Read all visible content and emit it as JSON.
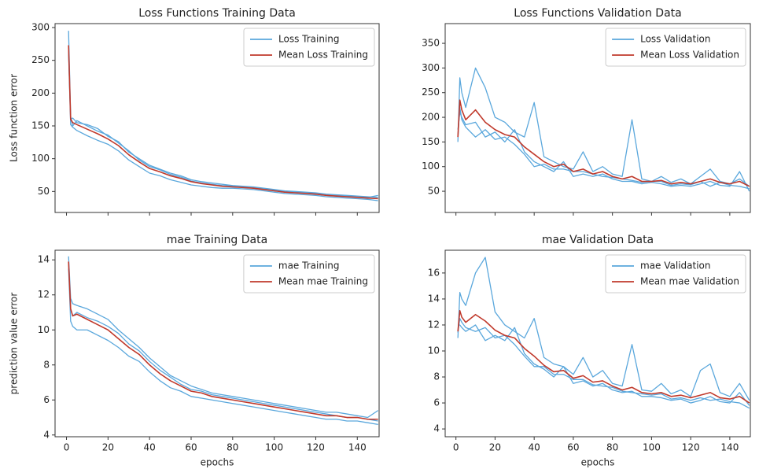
{
  "chart_data": [
    {
      "type": "line",
      "title": "Loss Functions Training Data",
      "ylabel": "Loss function error",
      "legend": "upper right",
      "show_xtick_labels": false,
      "x": [
        1,
        2,
        3,
        5,
        10,
        15,
        20,
        25,
        30,
        35,
        40,
        45,
        50,
        55,
        60,
        65,
        70,
        75,
        80,
        85,
        90,
        95,
        100,
        105,
        110,
        115,
        120,
        125,
        130,
        135,
        140,
        145,
        150
      ],
      "xlim": [
        -5.5,
        150.5
      ],
      "xticks": [
        0,
        20,
        40,
        60,
        80,
        100,
        120,
        140
      ],
      "ylim": [
        18,
        306
      ],
      "yticks": [
        50,
        100,
        150,
        200,
        250,
        300
      ],
      "series": [
        {
          "name": "Loss Training",
          "color": "#5aa7dc",
          "values": [
            295,
            165,
            150,
            158,
            150,
            142,
            136,
            124,
            112,
            98,
            88,
            83,
            76,
            72,
            66,
            63,
            61,
            59,
            58,
            57,
            56,
            54,
            52,
            50,
            49,
            48,
            47,
            45,
            44,
            43,
            42,
            41,
            44
          ]
        },
        {
          "name": "Loss Training",
          "color": "#5aa7dc",
          "values": [
            260,
            152,
            148,
            143,
            135,
            128,
            122,
            112,
            98,
            88,
            78,
            74,
            68,
            64,
            60,
            58,
            56,
            55,
            55,
            54,
            53,
            51,
            49,
            47,
            46,
            45,
            44,
            42,
            41,
            40,
            39,
            38,
            36
          ]
        },
        {
          "name": "Loss Training",
          "color": "#5aa7dc",
          "values": [
            265,
            160,
            162,
            155,
            152,
            146,
            134,
            126,
            110,
            100,
            90,
            84,
            78,
            74,
            68,
            65,
            63,
            61,
            59,
            58,
            57,
            55,
            53,
            51,
            50,
            49,
            48,
            46,
            45,
            44,
            43,
            42,
            41
          ]
        },
        {
          "name": "Mean Loss Training",
          "color": "#c0392b",
          "values": [
            273,
            160,
            155,
            152,
            145,
            138,
            130,
            120,
            106,
            95,
            85,
            80,
            74,
            70,
            65,
            62,
            60,
            58,
            57,
            56,
            55,
            53,
            51,
            49,
            48,
            47,
            46,
            44,
            43,
            42,
            41,
            40,
            39
          ]
        }
      ]
    },
    {
      "type": "line",
      "title": "Loss Functions Validation Data",
      "legend": "upper right",
      "show_xtick_labels": false,
      "x": [
        1,
        2,
        3,
        5,
        10,
        15,
        20,
        25,
        30,
        35,
        40,
        45,
        50,
        55,
        60,
        65,
        70,
        75,
        80,
        85,
        90,
        95,
        100,
        105,
        110,
        115,
        120,
        125,
        130,
        135,
        140,
        145,
        150
      ],
      "xlim": [
        -5.5,
        150.5
      ],
      "xticks": [
        0,
        20,
        40,
        60,
        80,
        100,
        120,
        140
      ],
      "ylim": [
        7,
        390
      ],
      "yticks": [
        50,
        100,
        150,
        200,
        250,
        300,
        350
      ],
      "series": [
        {
          "name": "Loss Validation",
          "color": "#5aa7dc",
          "values": [
            150,
            280,
            250,
            220,
            300,
            260,
            200,
            190,
            170,
            160,
            230,
            120,
            110,
            100,
            95,
            130,
            90,
            100,
            85,
            80,
            195,
            75,
            70,
            80,
            68,
            75,
            65,
            80,
            95,
            70,
            65,
            75,
            60
          ]
        },
        {
          "name": "Loss Validation",
          "color": "#5aa7dc",
          "values": [
            175,
            210,
            200,
            185,
            190,
            160,
            170,
            150,
            175,
            130,
            110,
            100,
            90,
            110,
            80,
            85,
            80,
            85,
            75,
            70,
            70,
            65,
            68,
            65,
            60,
            62,
            60,
            65,
            70,
            62,
            60,
            90,
            50
          ]
        },
        {
          "name": "Loss Validation",
          "color": "#5aa7dc",
          "values": [
            160,
            220,
            195,
            180,
            160,
            175,
            155,
            160,
            145,
            125,
            100,
            105,
            95,
            95,
            90,
            90,
            85,
            80,
            78,
            75,
            72,
            68,
            70,
            70,
            62,
            65,
            63,
            70,
            60,
            68,
            62,
            60,
            55
          ]
        },
        {
          "name": "Mean Loss Validation",
          "color": "#c0392b",
          "values": [
            160,
            235,
            215,
            195,
            215,
            190,
            175,
            165,
            160,
            140,
            125,
            110,
            100,
            105,
            90,
            95,
            85,
            90,
            80,
            75,
            80,
            70,
            70,
            72,
            65,
            68,
            65,
            70,
            75,
            68,
            65,
            70,
            60
          ]
        }
      ]
    },
    {
      "type": "line",
      "title": "mae Training Data",
      "ylabel": "prediction value error",
      "xlabel": "epochs",
      "legend": "upper right",
      "show_xtick_labels": true,
      "x": [
        1,
        2,
        3,
        5,
        10,
        15,
        20,
        25,
        30,
        35,
        40,
        45,
        50,
        55,
        60,
        65,
        70,
        75,
        80,
        85,
        90,
        95,
        100,
        105,
        110,
        115,
        120,
        125,
        130,
        135,
        140,
        145,
        150
      ],
      "xlim": [
        -5.5,
        150.5
      ],
      "xticks": [
        0,
        20,
        40,
        60,
        80,
        100,
        120,
        140
      ],
      "ylim": [
        3.9,
        14.55
      ],
      "yticks": [
        4,
        6,
        8,
        10,
        12,
        14
      ],
      "series": [
        {
          "name": "mae Training",
          "color": "#5aa7dc",
          "values": [
            14.2,
            11.8,
            11.5,
            11.4,
            11.2,
            10.9,
            10.6,
            10.0,
            9.5,
            9.0,
            8.4,
            7.9,
            7.4,
            7.1,
            6.8,
            6.6,
            6.4,
            6.3,
            6.2,
            6.1,
            6.0,
            5.9,
            5.8,
            5.7,
            5.6,
            5.5,
            5.4,
            5.3,
            5.3,
            5.2,
            5.1,
            5.0,
            5.4
          ]
        },
        {
          "name": "mae Training",
          "color": "#5aa7dc",
          "values": [
            13.5,
            10.5,
            10.2,
            10.0,
            10.0,
            9.7,
            9.4,
            9.0,
            8.5,
            8.2,
            7.6,
            7.1,
            6.7,
            6.5,
            6.2,
            6.1,
            6.0,
            5.9,
            5.8,
            5.7,
            5.6,
            5.5,
            5.4,
            5.3,
            5.2,
            5.1,
            5.0,
            4.9,
            4.9,
            4.8,
            4.8,
            4.7,
            4.6
          ]
        },
        {
          "name": "mae Training",
          "color": "#5aa7dc",
          "values": [
            13.8,
            11.2,
            10.8,
            11.0,
            10.7,
            10.5,
            10.2,
            9.8,
            9.2,
            8.8,
            8.2,
            7.7,
            7.3,
            6.9,
            6.6,
            6.5,
            6.3,
            6.2,
            6.1,
            6.0,
            5.9,
            5.8,
            5.7,
            5.6,
            5.5,
            5.4,
            5.3,
            5.2,
            5.1,
            5.0,
            5.0,
            4.9,
            4.8
          ]
        },
        {
          "name": "Mean mae Training",
          "color": "#c0392b",
          "values": [
            13.9,
            11.2,
            10.8,
            10.9,
            10.6,
            10.3,
            10.0,
            9.5,
            9.0,
            8.6,
            8.0,
            7.5,
            7.1,
            6.8,
            6.5,
            6.4,
            6.2,
            6.1,
            6.0,
            5.9,
            5.8,
            5.7,
            5.6,
            5.5,
            5.4,
            5.3,
            5.2,
            5.1,
            5.1,
            5.0,
            5.0,
            4.9,
            4.9
          ]
        }
      ]
    },
    {
      "type": "line",
      "title": "mae Validation Data",
      "xlabel": "epochs",
      "legend": "upper right",
      "show_xtick_labels": true,
      "x": [
        1,
        2,
        3,
        5,
        10,
        15,
        20,
        25,
        30,
        35,
        40,
        45,
        50,
        55,
        60,
        65,
        70,
        75,
        80,
        85,
        90,
        95,
        100,
        105,
        110,
        115,
        120,
        125,
        130,
        135,
        140,
        145,
        150
      ],
      "xlim": [
        -5.5,
        150.5
      ],
      "xticks": [
        0,
        20,
        40,
        60,
        80,
        100,
        120,
        140
      ],
      "ylim": [
        3.4,
        17.75
      ],
      "yticks": [
        4,
        6,
        8,
        10,
        12,
        14,
        16
      ],
      "series": [
        {
          "name": "mae Validation",
          "color": "#5aa7dc",
          "values": [
            11.0,
            14.5,
            14.0,
            13.5,
            16.0,
            17.2,
            13.0,
            12.0,
            11.5,
            11.0,
            12.5,
            9.5,
            9.0,
            8.8,
            8.2,
            9.5,
            8.0,
            8.5,
            7.5,
            7.3,
            10.5,
            7.0,
            6.9,
            7.5,
            6.7,
            7.0,
            6.5,
            8.5,
            9.0,
            6.8,
            6.5,
            7.5,
            6.2
          ]
        },
        {
          "name": "mae Validation",
          "color": "#5aa7dc",
          "values": [
            12.0,
            12.0,
            11.8,
            11.5,
            12.0,
            10.8,
            11.2,
            10.8,
            11.8,
            9.8,
            9.0,
            8.6,
            8.0,
            8.8,
            7.5,
            7.7,
            7.3,
            7.5,
            7.0,
            6.8,
            6.9,
            6.5,
            6.5,
            6.4,
            6.2,
            6.3,
            6.0,
            6.2,
            6.5,
            6.1,
            6.0,
            6.8,
            5.8
          ]
        },
        {
          "name": "mae Validation",
          "color": "#5aa7dc",
          "values": [
            11.4,
            12.5,
            12.2,
            11.8,
            11.5,
            11.8,
            11.0,
            11.2,
            10.5,
            9.6,
            8.8,
            8.8,
            8.2,
            8.2,
            7.8,
            7.8,
            7.4,
            7.3,
            7.2,
            6.9,
            6.8,
            6.7,
            6.6,
            6.7,
            6.3,
            6.4,
            6.2,
            6.4,
            6.2,
            6.3,
            6.1,
            6.0,
            5.6
          ]
        },
        {
          "name": "Mean mae Validation",
          "color": "#c0392b",
          "values": [
            11.5,
            13.1,
            12.6,
            12.2,
            12.8,
            12.3,
            11.6,
            11.2,
            11.0,
            10.2,
            9.6,
            8.9,
            8.4,
            8.5,
            7.9,
            8.1,
            7.6,
            7.7,
            7.3,
            7.0,
            7.2,
            6.8,
            6.7,
            6.8,
            6.5,
            6.6,
            6.4,
            6.6,
            6.8,
            6.4,
            6.3,
            6.5,
            6.0
          ]
        }
      ]
    }
  ]
}
